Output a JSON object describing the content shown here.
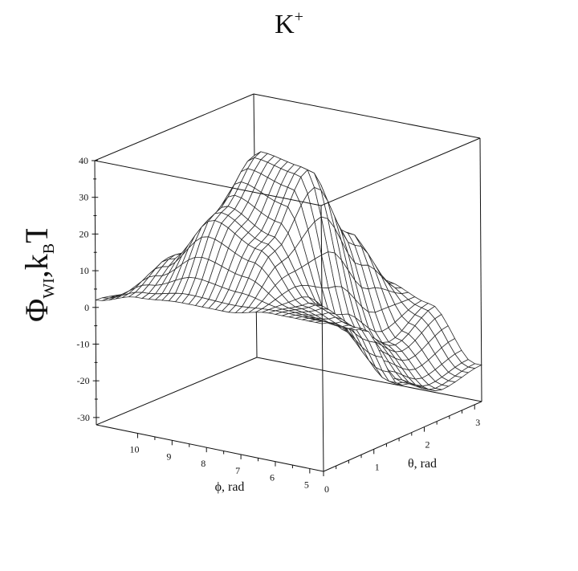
{
  "chart_data": {
    "type": "surface",
    "title": "K",
    "title_superscript": "+",
    "zlabel": "Φ̃WI, kBT",
    "zlabel_symbol": "Φ",
    "zlabel_sub1": "WI",
    "zlabel_k": "k",
    "zlabel_sub2": "B",
    "zlabel_T": "T",
    "xlabel": "ϕ, rad",
    "ylabel": "θ, rad",
    "x_ticks": [
      "10",
      "9",
      "8",
      "7",
      "6",
      "5"
    ],
    "y_ticks": [
      "0",
      "1",
      "2",
      "3"
    ],
    "z_ticks": [
      "40",
      "30",
      "20",
      "10",
      "0",
      "-10",
      "-20",
      "-30"
    ],
    "xlim": [
      4.6,
      11.2
    ],
    "ylim": [
      0,
      3.14
    ],
    "zlim": [
      -32,
      40
    ],
    "grid": false,
    "mesh_color": "#2b2b2b",
    "surface_samples": {
      "phi": [
        4.8,
        6.1,
        7.4,
        8.7,
        10.0,
        11.2
      ],
      "theta": [
        0,
        0.78,
        1.57,
        2.36,
        3.14
      ],
      "z": [
        [
          8,
          2,
          -18,
          -24,
          -22
        ],
        [
          8,
          6,
          -6,
          -14,
          -8
        ],
        [
          6,
          20,
          36,
          14,
          -4
        ],
        [
          6,
          26,
          38,
          10,
          -6
        ],
        [
          5,
          12,
          8,
          -8,
          -10
        ],
        [
          2,
          0,
          -4,
          -6,
          -8
        ]
      ]
    }
  }
}
